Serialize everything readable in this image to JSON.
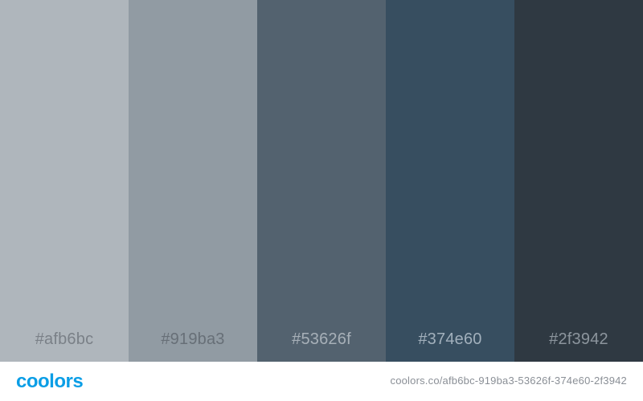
{
  "palette": {
    "swatches": [
      {
        "hex": "#afb6bc",
        "label": "#afb6bc",
        "text_color": "#7a8087"
      },
      {
        "hex": "#919ba3",
        "label": "#919ba3",
        "text_color": "#676f77"
      },
      {
        "hex": "#53626f",
        "label": "#53626f",
        "text_color": "#a7b0b8"
      },
      {
        "hex": "#374e60",
        "label": "#374e60",
        "text_color": "#a2b0bc"
      },
      {
        "hex": "#2f3942",
        "label": "#2f3942",
        "text_color": "#8c959d"
      }
    ]
  },
  "footer": {
    "brand": "coolors",
    "brand_color": "#0b9ee6",
    "url": "coolors.co/afb6bc-919ba3-53626f-374e60-2f3942"
  }
}
